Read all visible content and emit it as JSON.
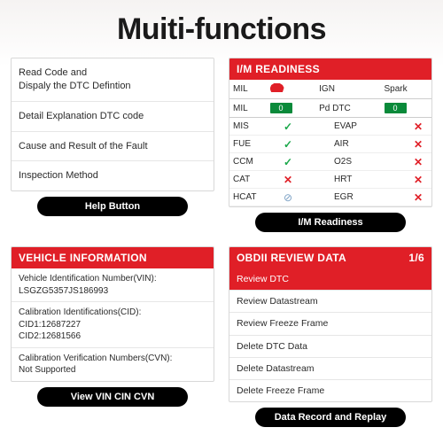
{
  "title": "Muiti-functions",
  "panel1": {
    "rows": [
      "Read Code and\nDispaly the DTC Defintion",
      "Detail Explanation DTC code",
      "Cause and Result of the Fault",
      "Inspection Method"
    ],
    "button": "Help Button"
  },
  "panel2": {
    "header": "I/M READINESS",
    "top": {
      "r1c1": "MIL",
      "r1c3": "IGN",
      "r1c4": "Spark",
      "r2c1": "MIL",
      "r2c2_badge": "0",
      "r2c3": "Pd DTC",
      "r2c4_badge": "0"
    },
    "rows": [
      {
        "l": "MIS",
        "ls": "check",
        "r": "EVAP",
        "rs": "cross"
      },
      {
        "l": "FUE",
        "ls": "check",
        "r": "AIR",
        "rs": "cross"
      },
      {
        "l": "CCM",
        "ls": "check",
        "r": "O2S",
        "rs": "cross"
      },
      {
        "l": "CAT",
        "ls": "cross",
        "r": "HRT",
        "rs": "cross"
      },
      {
        "l": "HCAT",
        "ls": "ban",
        "r": "EGR",
        "rs": "cross"
      }
    ],
    "button": "I/M Readiness"
  },
  "panel3": {
    "header": "VEHICLE INFORMATION",
    "rows": [
      "Vehicle Identification Number(VIN):\nLSGZG5357JS186993",
      "Calibration Identifications(CID):\nCID1:12687227\nCID2:12681566",
      "Calibration Verification Numbers(CVN):\nNot Supported"
    ],
    "button": "View VIN CIN CVN"
  },
  "panel4": {
    "header": "OBDII REVIEW DATA",
    "header_sub": "1/6",
    "rows": [
      "Review DTC",
      "Review Datastream",
      "Review Freeze Frame",
      "Delete DTC Data",
      "Delete Datastream",
      "Delete Freeze Frame"
    ],
    "highlight_index": 0,
    "button": "Data Record and Replay"
  }
}
